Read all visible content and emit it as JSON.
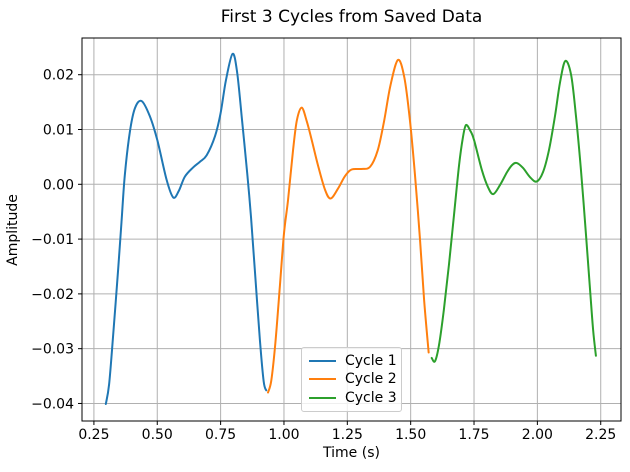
{
  "chart_data": {
    "type": "line",
    "title": "First 3 Cycles from Saved Data",
    "xlabel": "Time (s)",
    "ylabel": "Amplitude",
    "xlim": [
      0.203,
      2.33
    ],
    "ylim": [
      -0.0432,
      0.0267
    ],
    "x_ticks": [
      0.25,
      0.5,
      0.75,
      1.0,
      1.25,
      1.5,
      1.75,
      2.0,
      2.25
    ],
    "y_ticks": [
      0.02,
      0.01,
      0.0,
      -0.01,
      -0.02,
      -0.03,
      -0.04
    ],
    "grid": true,
    "grid_color": "#b0b0b0",
    "axis_color": "#000000",
    "background_color": "#ffffff",
    "legend_position": "lower center",
    "series": [
      {
        "name": "Cycle 1",
        "color": "#1f77b4",
        "x": [
          0.297,
          0.31,
          0.326,
          0.346,
          0.359,
          0.372,
          0.392,
          0.412,
          0.438,
          0.47,
          0.5,
          0.537,
          0.563,
          0.585,
          0.609,
          0.642,
          0.668,
          0.695,
          0.728,
          0.75,
          0.771,
          0.797,
          0.815,
          0.835,
          0.855,
          0.87,
          0.885,
          0.905,
          0.92,
          0.93
        ],
        "y": [
          -0.0401,
          -0.0365,
          -0.0275,
          -0.0153,
          -0.0068,
          0.0017,
          0.0096,
          0.0139,
          0.0152,
          0.0125,
          0.0081,
          0.0008,
          -0.0024,
          -0.0012,
          0.0014,
          0.0031,
          0.0041,
          0.0053,
          0.0088,
          0.013,
          0.019,
          0.0238,
          0.0205,
          0.0115,
          0.002,
          -0.006,
          -0.0156,
          -0.0284,
          -0.036,
          -0.0376
        ]
      },
      {
        "name": "Cycle 2",
        "color": "#ff7f0e",
        "x": [
          0.937,
          0.95,
          0.966,
          0.984,
          1.0,
          1.016,
          1.036,
          1.051,
          1.07,
          1.09,
          1.11,
          1.134,
          1.162,
          1.184,
          1.213,
          1.241,
          1.267,
          1.305,
          1.34,
          1.37,
          1.395,
          1.42,
          1.45,
          1.475,
          1.497,
          1.517,
          1.537,
          1.553,
          1.571
        ],
        "y": [
          -0.038,
          -0.0358,
          -0.029,
          -0.0185,
          -0.009,
          -0.0029,
          0.0063,
          0.0117,
          0.014,
          0.0115,
          0.008,
          0.0035,
          -0.001,
          -0.0026,
          -0.0008,
          0.0015,
          0.0027,
          0.0028,
          0.0032,
          0.0062,
          0.0115,
          0.018,
          0.0227,
          0.0195,
          0.0117,
          0.0017,
          -0.0102,
          -0.0211,
          -0.0307
        ]
      },
      {
        "name": "Cycle 3",
        "color": "#2ca02c",
        "x": [
          1.583,
          1.596,
          1.612,
          1.631,
          1.651,
          1.671,
          1.691,
          1.706,
          1.718,
          1.735,
          1.75,
          1.781,
          1.805,
          1.826,
          1.853,
          1.88,
          1.9,
          1.918,
          1.943,
          1.971,
          1.997,
          2.022,
          2.046,
          2.07,
          2.089,
          2.11,
          2.133,
          2.152,
          2.172,
          2.192,
          2.208,
          2.22,
          2.231
        ],
        "y": [
          -0.0317,
          -0.0323,
          -0.0293,
          -0.0229,
          -0.0147,
          -0.0056,
          0.0035,
          0.0085,
          0.0108,
          0.0098,
          0.0081,
          0.0026,
          -0.0005,
          -0.0018,
          -0.0001,
          0.0022,
          0.0035,
          0.0039,
          0.003,
          0.0013,
          0.0005,
          0.0022,
          0.0063,
          0.0126,
          0.0185,
          0.0225,
          0.02,
          0.0126,
          0.0026,
          -0.0093,
          -0.0193,
          -0.0266,
          -0.0313
        ]
      }
    ]
  }
}
